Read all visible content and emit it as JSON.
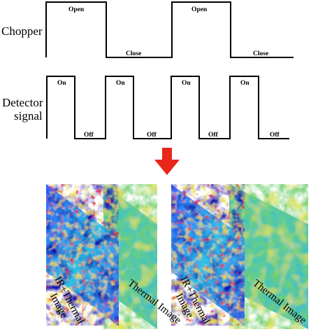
{
  "chopper": {
    "label": "Chopper",
    "open_label": "Open",
    "close_label": "Close"
  },
  "detector": {
    "label_line1": "Detector",
    "label_line2": "signal",
    "on_label": "On",
    "off_label": "Off"
  },
  "arrow": {
    "color": "#e8261b"
  },
  "panels": {
    "ir_thermal_line1": "IR+Thermal",
    "ir_thermal_line2": "Image",
    "thermal": "Thermal Image"
  },
  "colors": {
    "deep_blue": "#1a1ab4",
    "blue": "#2a5cff",
    "cyan": "#26c7e0",
    "green": "#7fcf6a",
    "yellow": "#f2e23a",
    "red": "#e01a14"
  }
}
